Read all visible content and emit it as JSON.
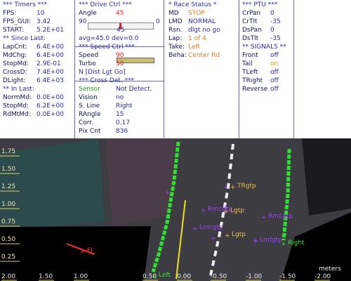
{
  "columns": [
    {
      "lines": [
        {
          "header": "*** Timers ***"
        },
        {
          "label": "FPS:",
          "value": "10"
        },
        {
          "label": "FPS_GUI:",
          "value": "3.42"
        },
        {
          "label": "START:",
          "value": "5.2E+01"
        },
        {
          "header": "** Since Last:"
        },
        {
          "label": "LapCnt:",
          "value": "6.4E+00"
        },
        {
          "label": "MdChg:",
          "value": "6.4E+00"
        },
        {
          "label": "StopMd:",
          "value": "2.9E-01"
        },
        {
          "label": "CrossD:",
          "value": "7.4E+00"
        },
        {
          "label": "DLight:",
          "value": "6.4E+03"
        },
        {
          "header": "** In Last:"
        },
        {
          "label": "NormMd:",
          "value": "0.0E+00"
        },
        {
          "label": "StopMd:",
          "value": "6.2E+00"
        },
        {
          "label": "RdMtMd:",
          "value": "0.0E+00"
        }
      ]
    },
    {
      "lines": [
        {
          "header": "***  Drive Ctrl  ***"
        },
        {
          "label": "Angle",
          "value": "45",
          "color": "#d82020"
        },
        {
          "left": "90",
          "right": "0"
        },
        {
          "center": "45"
        },
        {
          "text": "avg=45.0  dev=0.0"
        },
        {
          "header": "***  Speed Ctrl  ***"
        },
        {
          "label": "Speed",
          "value": "90",
          "color": "#d82020"
        },
        {
          "label": "Turbo",
          "value": "50",
          "color": "#d82020"
        },
        {
          "text": "N [Dist Lgt Go]"
        },
        {
          "header": "*** Cross Det. ***"
        },
        {
          "label": "Sensor",
          "value": "Not Detect.",
          "label_color": "#20a020"
        },
        {
          "label": "Vision",
          "value": "no"
        },
        {
          "label": "S. Line",
          "value": "Right"
        },
        {
          "label": "RAngle",
          "value": "15"
        },
        {
          "label": "Corr.",
          "value": "0.17"
        },
        {
          "label": "Pix Cnt",
          "value": "836"
        }
      ]
    },
    {
      "lines": [
        {
          "header": "* Race Status *"
        },
        {
          "label": "MD",
          "value": "STOP",
          "color": "#e08020"
        },
        {
          "label": "LMD",
          "value": "NORMAL"
        },
        {
          "label": "Rsn.",
          "value": "dlgt no go"
        },
        {
          "label": "Lap:",
          "value": "1 of 4",
          "color": "#e08020"
        },
        {
          "label": "Take:",
          "value": "Left",
          "color": "#e08020"
        },
        {
          "label": "Beha:",
          "value": "Center Rd",
          "color": "#e08020"
        }
      ]
    },
    {
      "lines": [
        {
          "header": "*** PTU ***"
        },
        {
          "label": "CrPan",
          "value": "0"
        },
        {
          "label": "CrTlt",
          "value": "-35"
        },
        {
          "label": "DsPan",
          "value": "0"
        },
        {
          "label": "DsTlt",
          "value": "-35"
        },
        {
          "header": "** SIGNALS **"
        },
        {
          "label": "Front",
          "value": "off"
        },
        {
          "label": "Tail",
          "value": "on",
          "color": "#e0a000"
        },
        {
          "label": "TLeft",
          "value": "off"
        },
        {
          "label": "TRight",
          "value": "off"
        },
        {
          "label": "Reverse",
          "value": "off"
        }
      ]
    }
  ],
  "overlay": {
    "y_ticks": [
      "1.75",
      "1.50",
      "1.25",
      "1.00",
      "0.75",
      "0.50",
      "0.25"
    ],
    "x_ticks": [
      "2.00",
      "1.50",
      "1.00",
      "0.50",
      "0.00",
      "-0.50",
      "-1.00",
      "-1.50",
      "-2.00"
    ],
    "x_unit": "meters",
    "labels": [
      {
        "text": "TRgtp",
        "color": "#e8c040"
      },
      {
        "text": "Rmcgtp",
        "color": "#a040ff"
      },
      {
        "text": "Lgtp",
        "color": "#e8c040"
      },
      {
        "text": "Rmcgtp",
        "color": "#a040ff"
      },
      {
        "text": "Lmcgtp",
        "color": "#a040ff"
      },
      {
        "text": "Lgtp",
        "color": "#e8c040"
      },
      {
        "text": "Lmfgtp",
        "color": "#a040ff"
      },
      {
        "text": "Right",
        "color": "#30e030"
      },
      {
        "text": "Fl",
        "color": "#ff3030"
      },
      {
        "text": "Left",
        "color": "#30e030"
      }
    ]
  }
}
